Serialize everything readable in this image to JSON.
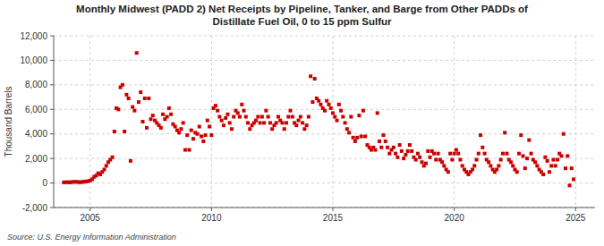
{
  "chart_data": {
    "type": "scatter",
    "title": "Monthly Midwest (PADD 2) Net Receipts by Pipeline, Tanker, and Barge from Other PADDs of\nDistillate Fuel Oil, 0 to 15 ppm Sulfur",
    "ylabel": "Thousand Barrels",
    "source": "Source: U.S. Energy Information Administration",
    "color": "#cc0000",
    "marker": "square",
    "grid": true,
    "xlim": [
      2003.5,
      2025.8
    ],
    "xticks": [
      2005,
      2010,
      2015,
      2020,
      2025
    ],
    "ylim": [
      -2000,
      12000
    ],
    "yticks": [
      {
        "value": -2000,
        "label": "-2,000"
      },
      0,
      {
        "value": 2000,
        "label": "2,000"
      },
      {
        "value": 4000,
        "label": "4,000"
      },
      {
        "value": 6000,
        "label": "6,000"
      },
      {
        "value": 8000,
        "label": "8,000"
      },
      {
        "value": 10000,
        "label": "10,000"
      },
      {
        "value": 12000,
        "label": "12,000"
      }
    ],
    "x": [
      2003.917,
      2004,
      2004.083,
      2004.167,
      2004.25,
      2004.333,
      2004.417,
      2004.5,
      2004.583,
      2004.667,
      2004.75,
      2004.833,
      2004.917,
      2005,
      2005.083,
      2005.167,
      2005.25,
      2005.333,
      2005.417,
      2005.5,
      2005.583,
      2005.667,
      2005.75,
      2005.833,
      2005.917,
      2006,
      2006.083,
      2006.167,
      2006.25,
      2006.333,
      2006.417,
      2006.5,
      2006.583,
      2006.667,
      2006.75,
      2006.833,
      2006.917,
      2007,
      2007.083,
      2007.167,
      2007.25,
      2007.333,
      2007.417,
      2007.5,
      2007.583,
      2007.667,
      2007.75,
      2007.833,
      2007.917,
      2008,
      2008.083,
      2008.167,
      2008.25,
      2008.333,
      2008.417,
      2008.5,
      2008.583,
      2008.667,
      2008.75,
      2008.833,
      2008.917,
      2009,
      2009.083,
      2009.167,
      2009.25,
      2009.333,
      2009.417,
      2009.5,
      2009.583,
      2009.667,
      2009.75,
      2009.833,
      2009.917,
      2010,
      2010.083,
      2010.167,
      2010.25,
      2010.333,
      2010.417,
      2010.5,
      2010.583,
      2010.667,
      2010.75,
      2010.833,
      2010.917,
      2011,
      2011.083,
      2011.167,
      2011.25,
      2011.333,
      2011.417,
      2011.5,
      2011.583,
      2011.667,
      2011.75,
      2011.833,
      2011.917,
      2012,
      2012.083,
      2012.167,
      2012.25,
      2012.333,
      2012.417,
      2012.5,
      2012.583,
      2012.667,
      2012.75,
      2012.833,
      2012.917,
      2013,
      2013.083,
      2013.167,
      2013.25,
      2013.333,
      2013.417,
      2013.5,
      2013.583,
      2013.667,
      2013.75,
      2013.833,
      2013.917,
      2014,
      2014.083,
      2014.167,
      2014.25,
      2014.333,
      2014.417,
      2014.5,
      2014.583,
      2014.667,
      2014.75,
      2014.833,
      2014.917,
      2015,
      2015.083,
      2015.167,
      2015.25,
      2015.333,
      2015.417,
      2015.5,
      2015.583,
      2015.667,
      2015.75,
      2015.833,
      2015.917,
      2016,
      2016.083,
      2016.167,
      2016.25,
      2016.333,
      2016.417,
      2016.5,
      2016.583,
      2016.667,
      2016.75,
      2016.833,
      2016.917,
      2017,
      2017.083,
      2017.167,
      2017.25,
      2017.333,
      2017.417,
      2017.5,
      2017.583,
      2017.667,
      2017.75,
      2017.833,
      2017.917,
      2018,
      2018.083,
      2018.167,
      2018.25,
      2018.333,
      2018.417,
      2018.5,
      2018.583,
      2018.667,
      2018.75,
      2018.833,
      2018.917,
      2019,
      2019.083,
      2019.167,
      2019.25,
      2019.333,
      2019.417,
      2019.5,
      2019.583,
      2019.667,
      2019.75,
      2019.833,
      2019.917,
      2020,
      2020.083,
      2020.167,
      2020.25,
      2020.333,
      2020.417,
      2020.5,
      2020.583,
      2020.667,
      2020.75,
      2020.833,
      2020.917,
      2021,
      2021.083,
      2021.167,
      2021.25,
      2021.333,
      2021.417,
      2021.5,
      2021.583,
      2021.667,
      2021.75,
      2021.833,
      2021.917,
      2022,
      2022.083,
      2022.167,
      2022.25,
      2022.333,
      2022.417,
      2022.5,
      2022.583,
      2022.667,
      2022.75,
      2022.833,
      2022.917,
      2023,
      2023.083,
      2023.167,
      2023.25,
      2023.333,
      2023.417,
      2023.5,
      2023.583,
      2023.667,
      2023.75,
      2023.833,
      2023.917,
      2024,
      2024.083,
      2024.167,
      2024.25,
      2024.333,
      2024.417,
      2024.5,
      2024.583,
      2024.667,
      2024.75,
      2024.833,
      2024.917
    ],
    "values": [
      50,
      60,
      70,
      50,
      80,
      90,
      100,
      80,
      60,
      80,
      100,
      120,
      150,
      200,
      300,
      500,
      600,
      800,
      700,
      900,
      1100,
      1400,
      1700,
      1900,
      2100,
      4200,
      6100,
      6000,
      7800,
      8000,
      4200,
      7200,
      6900,
      1800,
      6200,
      5900,
      10600,
      6600,
      7400,
      5000,
      6900,
      4500,
      6900,
      5200,
      5500,
      5100,
      4900,
      4700,
      4500,
      5600,
      5200,
      5400,
      6100,
      5600,
      4800,
      4600,
      4300,
      4100,
      4400,
      4900,
      2700,
      3900,
      2700,
      4300,
      3600,
      4100,
      4000,
      4600,
      3800,
      3400,
      3900,
      5100,
      4600,
      3900,
      6100,
      6300,
      5900,
      5400,
      5100,
      4700,
      5300,
      5600,
      4900,
      4400,
      5400,
      5900,
      5700,
      5400,
      6400,
      5900,
      5400,
      4900,
      4400,
      4700,
      4900,
      5100,
      5400,
      4900,
      5400,
      4900,
      5900,
      5400,
      4900,
      4400,
      4700,
      4900,
      5400,
      5100,
      4900,
      4400,
      4900,
      5400,
      5900,
      5400,
      4900,
      4700,
      5100,
      5400,
      4900,
      4400,
      4700,
      5400,
      8700,
      6600,
      8500,
      6900,
      6700,
      6400,
      6100,
      5900,
      6700,
      6400,
      6100,
      5700,
      5400,
      5100,
      6400,
      5900,
      5400,
      4900,
      4400,
      4100,
      5400,
      3700,
      3400,
      3700,
      5500,
      3800,
      5900,
      3800,
      3100,
      2900,
      2700,
      2900,
      2700,
      5700,
      3400,
      2900,
      3900,
      3400,
      2900,
      2400,
      2700,
      2900,
      2400,
      2100,
      3100,
      2600,
      2000,
      2300,
      2600,
      3100,
      2600,
      2100,
      1900,
      2400,
      2100,
      1700,
      1400,
      1600,
      2600,
      2100,
      2600,
      2400,
      1900,
      2400,
      1900,
      1700,
      1400,
      1100,
      900,
      2400,
      1900,
      2400,
      2700,
      2400,
      1900,
      1400,
      1100,
      900,
      700,
      900,
      1100,
      1400,
      1900,
      2400,
      3900,
      2900,
      2400,
      1900,
      1700,
      1400,
      1100,
      900,
      1100,
      1400,
      1900,
      2400,
      4100,
      2400,
      1900,
      1700,
      1400,
      1100,
      900,
      2400,
      3900,
      2200,
      1200,
      2000,
      3500,
      2400,
      1900,
      1700,
      1400,
      1100,
      900,
      700,
      2100,
      1800,
      900,
      1400,
      1900,
      1400,
      1900,
      2400,
      2200,
      4000,
      1200,
      2200,
      -200,
      1200,
      300
    ]
  }
}
